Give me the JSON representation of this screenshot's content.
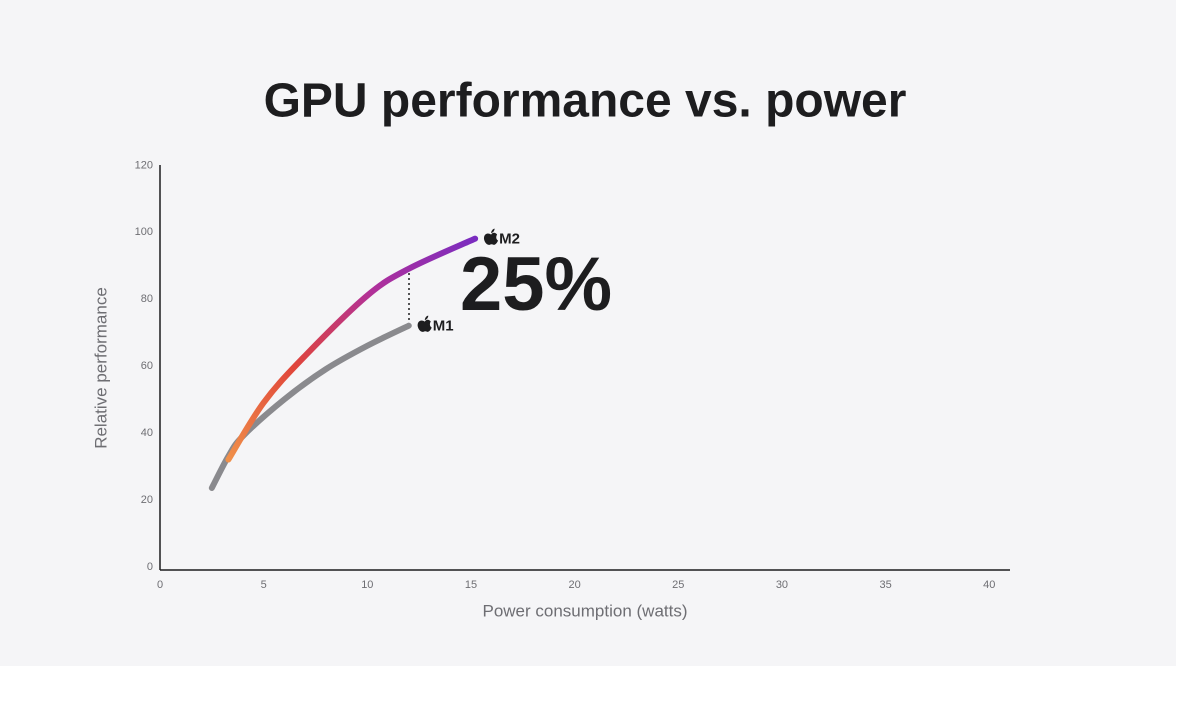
{
  "chart_data": {
    "type": "line",
    "title": "GPU performance vs. power",
    "x_label": "Power consumption (watts)",
    "y_label": "Relative performance",
    "annotation": "25%",
    "xlim": [
      0,
      41
    ],
    "xticks": [
      0,
      5,
      10,
      15,
      20,
      25,
      30,
      35,
      40
    ],
    "ylim": [
      0,
      121
    ],
    "yticks": [
      0,
      20,
      40,
      60,
      80,
      100,
      120
    ],
    "grid": false,
    "series": [
      {
        "name": "M1",
        "color": "#8a8a8e",
        "x": [
          2.5,
          3.3,
          4,
          6,
          8,
          10,
          12
        ],
        "values": [
          24.5,
          34,
          40,
          51,
          60,
          67,
          73
        ]
      },
      {
        "name": "M2",
        "color": "#7a2cc0",
        "colors": [
          "#f0904a",
          "#e0453a",
          "#b0309a",
          "#7a2cc0"
        ],
        "x": [
          3.3,
          5,
          7,
          10,
          12,
          15.2
        ],
        "values": [
          33,
          50,
          64,
          82,
          90,
          99
        ]
      }
    ]
  }
}
